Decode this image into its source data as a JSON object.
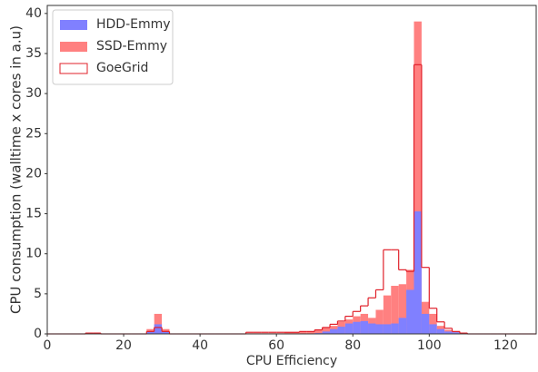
{
  "chart_data": {
    "type": "histogram",
    "x_label": "CPU Efficiency",
    "y_label": "CPU consumption (walltime x cores in a.u)",
    "bins": [
      0,
      2,
      4,
      6,
      8,
      10,
      12,
      14,
      16,
      18,
      20,
      22,
      24,
      26,
      28,
      30,
      32,
      34,
      36,
      38,
      40,
      42,
      44,
      46,
      48,
      50,
      52,
      54,
      56,
      58,
      60,
      62,
      64,
      66,
      68,
      70,
      72,
      74,
      76,
      78,
      80,
      82,
      84,
      86,
      88,
      90,
      92,
      94,
      96,
      98,
      100,
      102,
      104,
      106,
      108,
      110,
      112,
      114,
      116,
      118,
      120,
      122,
      124,
      126,
      128
    ],
    "series": [
      {
        "name": "HDD-Emmy",
        "color": "#8080ff",
        "style": "filled",
        "values": [
          0,
          0,
          0,
          0,
          0,
          0,
          0,
          0,
          0,
          0,
          0,
          0,
          0,
          0.3,
          1.2,
          0.3,
          0,
          0,
          0,
          0,
          0,
          0,
          0,
          0,
          0,
          0,
          0,
          0,
          0,
          0,
          0,
          0,
          0,
          0,
          0,
          0.1,
          0.3,
          0.6,
          0.9,
          1.3,
          1.5,
          1.6,
          1.3,
          1.2,
          1.2,
          1.3,
          2.0,
          5.5,
          15.3,
          2.5,
          1.2,
          0.6,
          0.3,
          0.2,
          0.1,
          0,
          0,
          0,
          0,
          0,
          0,
          0,
          0,
          0
        ]
      },
      {
        "name": "SSD-Emmy",
        "color": "#ff8080",
        "style": "filled",
        "values": [
          0,
          0,
          0,
          0,
          0,
          0.1,
          0.1,
          0,
          0,
          0,
          0,
          0,
          0,
          0.6,
          2.5,
          0.6,
          0,
          0,
          0,
          0,
          0,
          0,
          0,
          0,
          0,
          0,
          0.1,
          0.1,
          0.1,
          0.1,
          0.1,
          0.2,
          0.2,
          0.3,
          0.3,
          0.5,
          0.8,
          1.0,
          1.5,
          1.8,
          2.2,
          2.5,
          2.0,
          3.0,
          4.8,
          6.0,
          6.2,
          8.0,
          39.0,
          4.0,
          2.5,
          1.0,
          0.5,
          0.3,
          0.1,
          0,
          0,
          0,
          0,
          0,
          0,
          0,
          0,
          0
        ]
      },
      {
        "name": "GoeGrid",
        "color": "#e0202a",
        "style": "step",
        "values": [
          0,
          0,
          0,
          0,
          0,
          0.1,
          0.1,
          0,
          0,
          0,
          0,
          0,
          0,
          0.3,
          0.8,
          0.3,
          0,
          0,
          0,
          0,
          0,
          0,
          0,
          0,
          0,
          0,
          0.2,
          0.2,
          0.2,
          0.2,
          0.2,
          0.2,
          0.2,
          0.3,
          0.3,
          0.5,
          0.8,
          1.2,
          1.6,
          2.2,
          2.8,
          3.5,
          4.5,
          5.5,
          10.5,
          10.5,
          8.0,
          7.8,
          33.6,
          8.3,
          3.2,
          1.5,
          0.7,
          0.3,
          0.1,
          0,
          0,
          0,
          0,
          0,
          0,
          0,
          0,
          0
        ]
      }
    ],
    "xlim": [
      0,
      128
    ],
    "xticks": [
      0,
      20,
      40,
      60,
      80,
      100,
      120
    ],
    "ylim": [
      0,
      41
    ],
    "yticks": [
      0,
      5,
      10,
      15,
      20,
      25,
      30,
      35,
      40
    ],
    "grid": false,
    "legend": "upper left"
  }
}
